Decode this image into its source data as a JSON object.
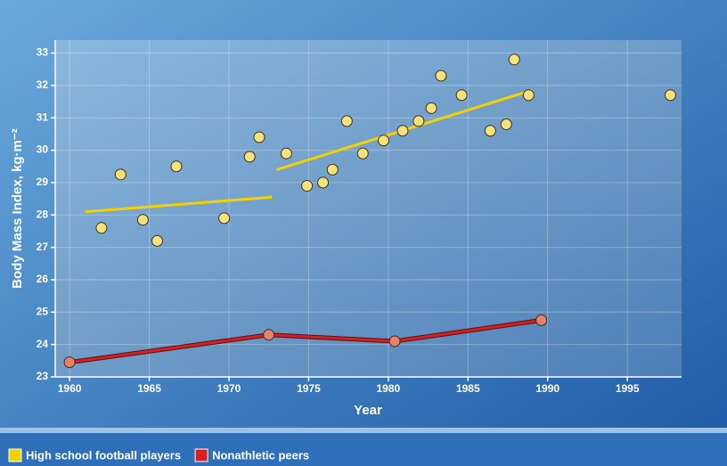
{
  "chart_data": {
    "type": "scatter",
    "x_label": "Year",
    "y_label": "Body Mass Index, kg·m⁻²",
    "xlim": [
      1959.1,
      1998.4
    ],
    "ylim": [
      23,
      33.4
    ],
    "xticks": [
      1960,
      1965,
      1970,
      1975,
      1980,
      1985,
      1990,
      1995
    ],
    "yticks": [
      23,
      24,
      25,
      26,
      27,
      28,
      29,
      30,
      31,
      32,
      33
    ],
    "grid": true,
    "legend": "bottom-left",
    "series": [
      {
        "name": "High school football players",
        "color": "#f5d000",
        "marker_color": "#f7e27a",
        "mode": "markers",
        "x": [
          1962.0,
          1963.2,
          1964.6,
          1965.5,
          1966.7,
          1969.7,
          1971.3,
          1971.9,
          1973.6,
          1974.9,
          1975.9,
          1976.5,
          1977.4,
          1978.4,
          1979.7,
          1980.9,
          1981.9,
          1982.7,
          1983.3,
          1984.6,
          1986.4,
          1987.4,
          1987.9,
          1988.8,
          1997.7
        ],
        "values": [
          27.6,
          29.25,
          27.85,
          27.2,
          29.5,
          27.9,
          29.8,
          30.4,
          29.9,
          28.9,
          29.0,
          29.4,
          30.9,
          29.9,
          30.3,
          30.6,
          30.9,
          31.3,
          32.3,
          31.7,
          30.6,
          30.8,
          32.8,
          31.7,
          31.7
        ],
        "trend_lines": [
          {
            "x": [
              1961.0,
              1972.7
            ],
            "values": [
              28.1,
              28.55
            ]
          },
          {
            "x": [
              1973.0,
              1989.0
            ],
            "values": [
              29.4,
              31.85
            ]
          }
        ]
      },
      {
        "name": "Nonathletic peers",
        "color": "#d42020",
        "marker_color": "#e8806a",
        "mode": "lines+markers",
        "x": [
          1960.0,
          1972.5,
          1980.4,
          1989.6
        ],
        "values": [
          23.45,
          24.3,
          24.1,
          24.75
        ]
      }
    ]
  }
}
